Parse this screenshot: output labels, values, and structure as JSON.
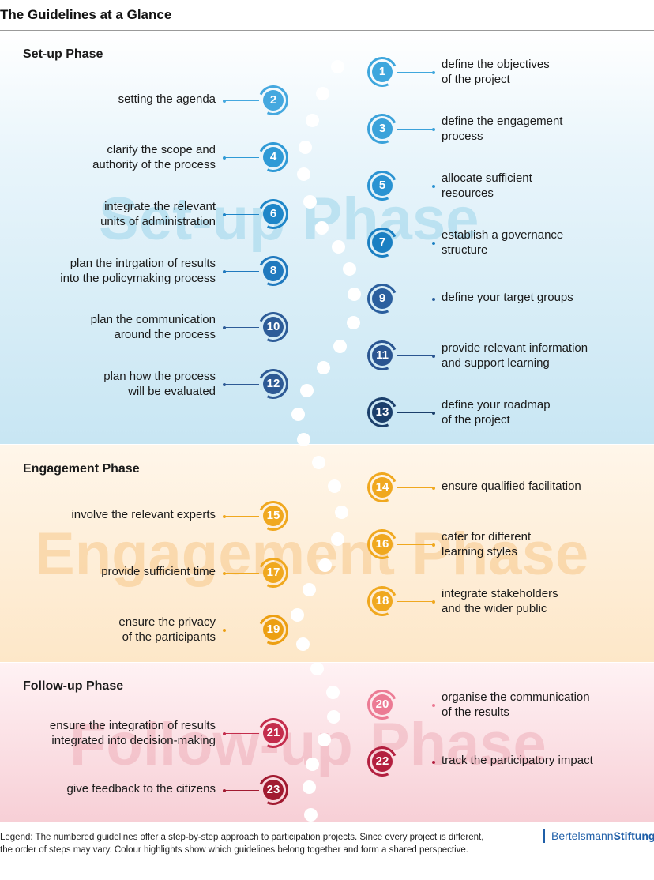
{
  "header": {
    "title": "The Guidelines at a Glance"
  },
  "phases": {
    "setup": {
      "title": "Set-up Phase",
      "watermark": "Set-up Phase"
    },
    "engagement": {
      "title": "Engagement Phase",
      "watermark": "Engagement Phase"
    },
    "followup": {
      "title": "Follow-up Phase",
      "watermark": "Follow-up Phase"
    }
  },
  "colors": {
    "s1": "#3fa7dd",
    "s2": "#45a8df",
    "s3": "#3ba2da",
    "s4": "#2f9ad6",
    "s5": "#2a93d2",
    "s6": "#1f86c8",
    "s7": "#1a7fc2",
    "s8": "#2079be",
    "s9": "#2b5f9e",
    "s10": "#2d5c98",
    "s11": "#2a5591",
    "s12": "#2e5a95",
    "s13": "#1b3f6b",
    "engagement": "#f0a81f",
    "engagement_dark": "#ec9f12",
    "followup_light": "#ec7b94",
    "followup": "#c42c4c",
    "followup_dark": "#b31f3f",
    "followup_deep": "#a11a30",
    "brand": "#1f5fa8"
  },
  "guidelines": [
    {
      "number": "1",
      "lines": [
        "define the objectives",
        "of the project"
      ]
    },
    {
      "number": "2",
      "lines": [
        "setting the agenda"
      ]
    },
    {
      "number": "3",
      "lines": [
        "define the engagement",
        "process"
      ]
    },
    {
      "number": "4",
      "lines": [
        "clarify the scope and",
        "authority of the process"
      ]
    },
    {
      "number": "5",
      "lines": [
        "allocate sufficient",
        "resources"
      ]
    },
    {
      "number": "6",
      "lines": [
        "integrate the relevant",
        "units of administration"
      ]
    },
    {
      "number": "7",
      "lines": [
        "establish a governance",
        "structure"
      ]
    },
    {
      "number": "8",
      "lines": [
        "plan the intrgation of results",
        "into the policymaking process"
      ]
    },
    {
      "number": "9",
      "lines": [
        "define your target groups"
      ]
    },
    {
      "number": "10",
      "lines": [
        "plan the communication",
        "around the process"
      ]
    },
    {
      "number": "11",
      "lines": [
        "provide relevant information",
        "and support learning"
      ]
    },
    {
      "number": "12",
      "lines": [
        "plan how the process",
        "will be evaluated"
      ]
    },
    {
      "number": "13",
      "lines": [
        "define your roadmap",
        "of the project"
      ]
    },
    {
      "number": "14",
      "lines": [
        "ensure qualified facilitation"
      ]
    },
    {
      "number": "15",
      "lines": [
        "involve the relevant experts"
      ]
    },
    {
      "number": "16",
      "lines": [
        "cater for different",
        "learning styles"
      ]
    },
    {
      "number": "17",
      "lines": [
        "provide sufficient time"
      ]
    },
    {
      "number": "18",
      "lines": [
        "integrate stakeholders",
        "and the wider public"
      ]
    },
    {
      "number": "19",
      "lines": [
        "ensure the privacy",
        "of the participants"
      ]
    },
    {
      "number": "20",
      "lines": [
        "organise the communication",
        "of the results"
      ]
    },
    {
      "number": "21",
      "lines": [
        "ensure the integration of results",
        "integrated into decision-making"
      ]
    },
    {
      "number": "22",
      "lines": [
        "track the participatory impact"
      ]
    },
    {
      "number": "23",
      "lines": [
        "give feedback to the citizens"
      ]
    }
  ],
  "footer": {
    "legend_line1": "Legend: The numbered guidelines offer a step-by-step approach to participation projects. Since every project is different,",
    "legend_line2": "the order of steps may vary. Colour highlights show which guidelines belong together and form a shared perspective.",
    "brand_regular": "Bertelsmann",
    "brand_bold": "Stiftung"
  }
}
